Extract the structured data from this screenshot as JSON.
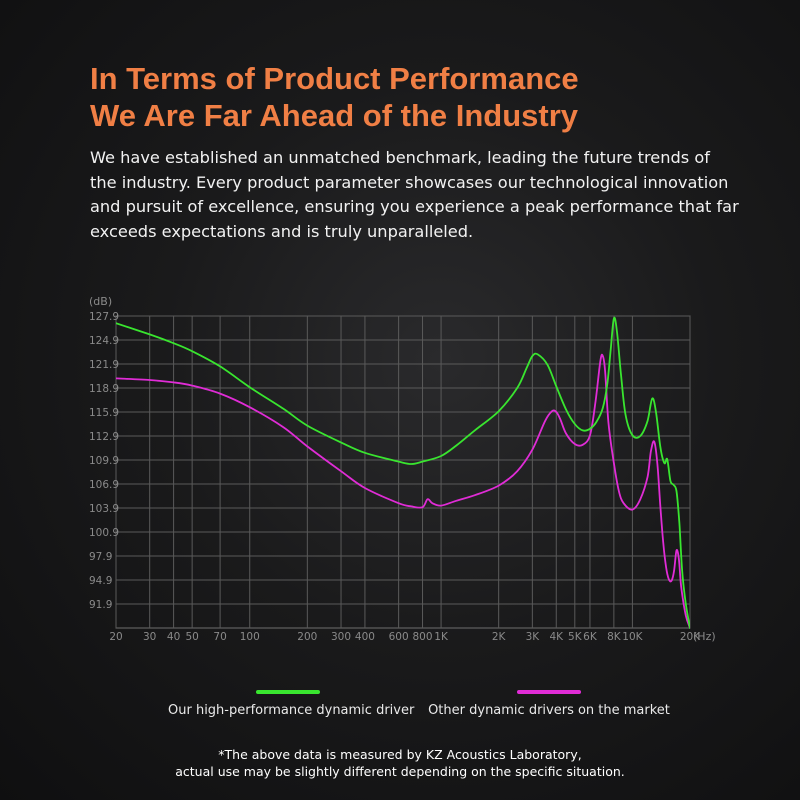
{
  "headline": {
    "line1": "In Terms of Product Performance",
    "line2": "We Are Far Ahead of the Industry"
  },
  "intro": "We have established an unmatched benchmark, leading the future trends of the industry. Every product parameter showcases our technological innovation and pursuit of excellence, ensuring you experience a peak performance that far exceeds expectations and is truly unparalleled.",
  "chart_data": {
    "type": "line",
    "title": "",
    "ylabel": "(dB)",
    "xlabel": "(Hz)",
    "xscale": "log",
    "xlim": [
      20,
      20000
    ],
    "ylim": [
      88.9,
      127.9
    ],
    "grid": true,
    "legend_position": "bottom",
    "y_ticks": [
      "127.9",
      "124.9",
      "121.9",
      "118.9",
      "115.9",
      "112.9",
      "109.9",
      "106.9",
      "103.9",
      "100.9",
      "97.9",
      "94.9",
      "91.9"
    ],
    "x_ticks": [
      {
        "value": 20,
        "label": "20"
      },
      {
        "value": 30,
        "label": "30"
      },
      {
        "value": 40,
        "label": "40"
      },
      {
        "value": 50,
        "label": "50"
      },
      {
        "value": 70,
        "label": "70"
      },
      {
        "value": 100,
        "label": "100"
      },
      {
        "value": 200,
        "label": "200"
      },
      {
        "value": 300,
        "label": "300"
      },
      {
        "value": 400,
        "label": "400"
      },
      {
        "value": 600,
        "label": "600"
      },
      {
        "value": 800,
        "label": "800"
      },
      {
        "value": 1000,
        "label": "1K"
      },
      {
        "value": 2000,
        "label": "2K"
      },
      {
        "value": 3000,
        "label": "3K"
      },
      {
        "value": 4000,
        "label": "4K"
      },
      {
        "value": 5000,
        "label": "5K"
      },
      {
        "value": 6000,
        "label": "6K"
      },
      {
        "value": 8000,
        "label": "8K"
      },
      {
        "value": 10000,
        "label": "10K"
      },
      {
        "value": 20000,
        "label": "20K"
      }
    ],
    "series": [
      {
        "name": "Our high-performance dynamic driver",
        "color": "#39e52f",
        "x": [
          20,
          30,
          40,
          50,
          70,
          100,
          150,
          200,
          300,
          400,
          600,
          700,
          800,
          1000,
          1200,
          1500,
          2000,
          2500,
          2800,
          3000,
          3200,
          3600,
          4000,
          4500,
          5000,
          5500,
          6000,
          6500,
          7000,
          7400,
          7700,
          8000,
          8300,
          8700,
          9200,
          10000,
          11000,
          12000,
          12700,
          13300,
          14000,
          14700,
          15200,
          15800,
          16400,
          17000,
          17600,
          18200,
          19000,
          20000
        ],
        "y": [
          127.0,
          125.6,
          124.5,
          123.5,
          121.6,
          119.0,
          116.3,
          114.2,
          112.1,
          110.8,
          109.7,
          109.4,
          109.7,
          110.4,
          111.7,
          113.6,
          116.0,
          118.9,
          121.4,
          122.9,
          123.1,
          121.8,
          119.1,
          116.2,
          114.4,
          113.6,
          113.8,
          114.7,
          116.4,
          119.5,
          123.7,
          127.6,
          126.0,
          120.8,
          115.6,
          113.0,
          112.9,
          114.8,
          117.6,
          115.8,
          111.5,
          109.5,
          110.0,
          107.3,
          106.8,
          106.0,
          102.0,
          96.0,
          92.0,
          88.9
        ]
      },
      {
        "name": "Other dynamic drivers on the market",
        "color": "#e02cd6",
        "x": [
          20,
          30,
          40,
          50,
          70,
          100,
          150,
          200,
          300,
          400,
          600,
          700,
          800,
          850,
          900,
          1000,
          1200,
          1500,
          2000,
          2500,
          3000,
          3500,
          3800,
          4000,
          4200,
          4500,
          5000,
          5500,
          6000,
          6400,
          6800,
          7000,
          7200,
          7500,
          8000,
          8500,
          9000,
          10000,
          11000,
          12000,
          12500,
          13000,
          13500,
          14000,
          14500,
          15000,
          15500,
          16000,
          16500,
          17000,
          17500,
          18000,
          19000,
          20000
        ],
        "y": [
          120.1,
          119.9,
          119.6,
          119.2,
          118.2,
          116.5,
          114.0,
          111.6,
          108.5,
          106.4,
          104.5,
          104.1,
          104.0,
          105.0,
          104.5,
          104.2,
          104.8,
          105.5,
          106.7,
          108.5,
          111.2,
          114.8,
          116.0,
          115.9,
          115.0,
          113.2,
          111.9,
          111.8,
          113.0,
          117.0,
          122.3,
          122.9,
          121.0,
          114.5,
          109.5,
          106.0,
          104.5,
          103.7,
          105.0,
          107.8,
          111.0,
          112.2,
          109.5,
          104.0,
          99.5,
          96.5,
          95.0,
          94.8,
          96.0,
          98.6,
          97.5,
          94.0,
          90.5,
          88.9
        ]
      }
    ]
  },
  "footnote": {
    "line1": "*The above data is measured by KZ Acoustics Laboratory,",
    "line2": "actual use may be slightly different depending on the specific situation."
  }
}
